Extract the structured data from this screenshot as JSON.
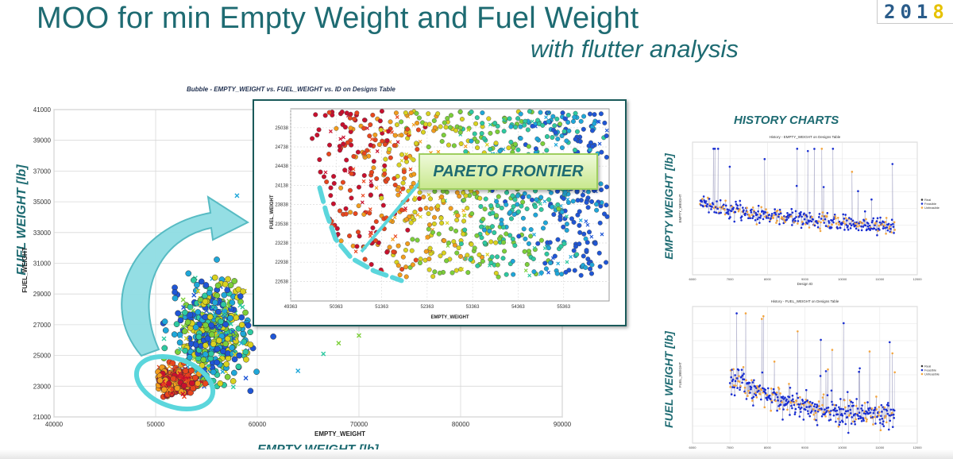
{
  "slide": {
    "title": "MOO for min Empty Weight and Fuel Weight",
    "subtitle": "with flutter analysis",
    "badge_main": "201",
    "badge_highlight": "8",
    "big_ylabel": "FUEL WEIGHT [lb]",
    "big_xlabel": "EMPTY WEIGHT [lb]",
    "pareto_label": "PARETO FRONTIER",
    "history_title": "HISTORY CHARTS",
    "history_ylabel_1": "EMPTY WEIGHT [lb]",
    "history_ylabel_2": "FUEL WEIGHT [lb]"
  },
  "colors": {
    "heading": "#1e6b72",
    "pareto_highlight": "#5bd6dc",
    "feasible": "#1a2fd1",
    "unfeasible": "#f3a640",
    "infeasible_marker": "x"
  },
  "chart_data": [
    {
      "type": "scatter",
      "subtype": "bubble",
      "title": "Bubble - EMPTY_WEIGHT vs. FUEL_WEIGHT vs. ID on Designs Table",
      "xlabel": "EMPTY_WEIGHT",
      "ylabel": "FUEL_WEIGHT",
      "xlim": [
        40000,
        90000
      ],
      "ylim": [
        21000,
        41000
      ],
      "xticks": [
        "40000",
        "50000",
        "60000",
        "70000",
        "80000",
        "90000"
      ],
      "yticks": [
        "21000",
        "23000",
        "25000",
        "27000",
        "29000",
        "31000",
        "33000",
        "35000",
        "37000",
        "39000",
        "41000"
      ],
      "grid": true,
      "color_scale": [
        "#c8102e",
        "#e8461e",
        "#f29d1d",
        "#d9d21f",
        "#7ccf3a",
        "#2ec9a0",
        "#1fa7d9",
        "#1f56d6"
      ],
      "clusters": [
        {
          "name": "pareto-region",
          "x_center": 52000,
          "y_center": 23300,
          "x_spread": 1800,
          "y_spread": 700
        },
        {
          "name": "main-cloud",
          "x_center": 55500,
          "y_center": 26500,
          "x_spread": 3500,
          "y_spread": 2800
        }
      ],
      "outliers": [
        {
          "x": 58000,
          "y": 35400
        },
        {
          "x": 64000,
          "y": 24000
        },
        {
          "x": 66500,
          "y": 25100
        },
        {
          "x": 68000,
          "y": 25800
        },
        {
          "x": 70000,
          "y": 26300
        },
        {
          "x": 60500,
          "y": 27800
        }
      ]
    },
    {
      "type": "scatter",
      "subtype": "bubble-zoom",
      "xlabel": "EMPTY_WEIGHT",
      "ylabel": "FUEL_WEIGHT",
      "xlim": [
        49363,
        56363
      ],
      "ylim": [
        22333,
        25333
      ],
      "xticks": [
        "49363",
        "50363",
        "51363",
        "52363",
        "53363",
        "54363",
        "55363"
      ],
      "yticks": [
        "22638",
        "22938",
        "23238",
        "23538",
        "23838",
        "24138",
        "24438",
        "24738",
        "25038"
      ],
      "grid": true,
      "pareto_front": [
        {
          "x": 50000,
          "y": 24100
        },
        {
          "x": 50150,
          "y": 23700
        },
        {
          "x": 50350,
          "y": 23300
        },
        {
          "x": 50700,
          "y": 23000
        },
        {
          "x": 51200,
          "y": 22800
        },
        {
          "x": 51800,
          "y": 22650
        }
      ]
    },
    {
      "type": "line",
      "title": "History - EMPTY_WEIGHT on Designs Table",
      "xlabel": "Design ID",
      "ylabel": "EMPTY_WEIGHT",
      "xlim": [
        6000,
        12000
      ],
      "legend": [
        "Real",
        "Feasible",
        "Unfeasible"
      ],
      "legend_position": "right",
      "series": [
        {
          "name": "Feasible",
          "x": [
            6200,
            6500,
            6800,
            7000,
            7200,
            7500,
            8000,
            8500,
            9000,
            9500,
            10000,
            10500,
            11000,
            11500
          ],
          "values": [
            0.55,
            0.52,
            0.5,
            0.48,
            0.5,
            0.47,
            0.45,
            0.43,
            0.42,
            0.4,
            0.39,
            0.38,
            0.37,
            0.36
          ]
        }
      ]
    },
    {
      "type": "line",
      "title": "History - FUEL_WEIGHT on Designs Table",
      "xlabel": "Design ID",
      "ylabel": "FUEL_WEIGHT",
      "xlim": [
        6000,
        12000
      ],
      "legend": [
        "Real",
        "Feasible",
        "Unfeasible"
      ],
      "legend_position": "right",
      "series": [
        {
          "name": "Feasible",
          "x": [
            7000,
            7200,
            7500,
            8000,
            8500,
            9000,
            9500,
            10000,
            10500,
            11000,
            11500
          ],
          "values": [
            0.45,
            0.5,
            0.42,
            0.35,
            0.3,
            0.27,
            0.25,
            0.23,
            0.22,
            0.21,
            0.2
          ]
        }
      ]
    }
  ]
}
